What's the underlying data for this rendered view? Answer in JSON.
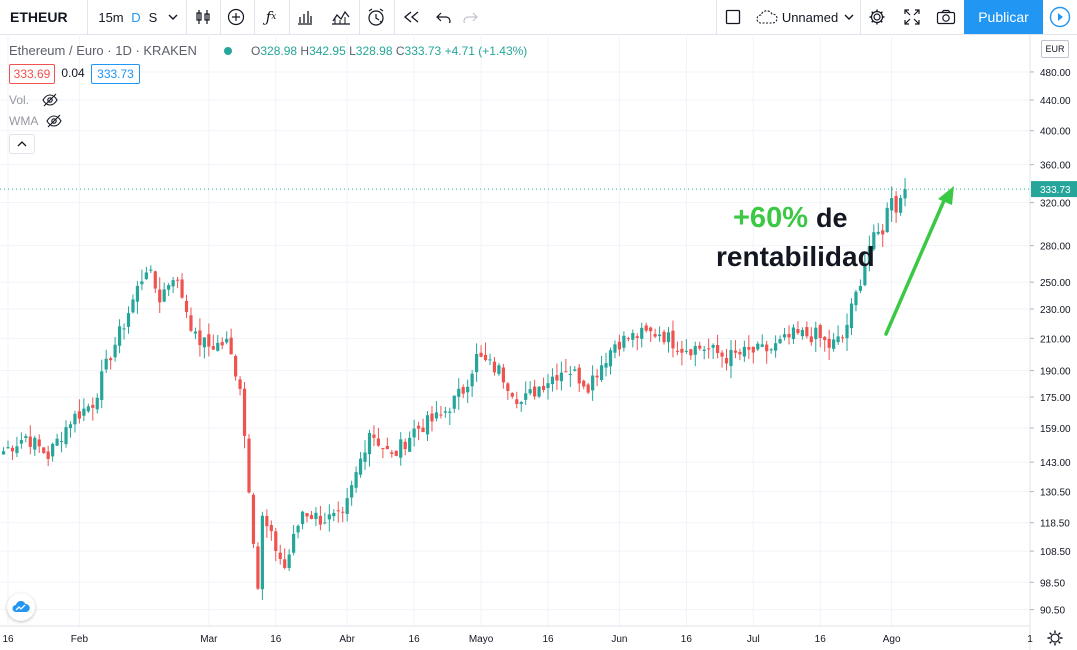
{
  "toolbar": {
    "symbol": "ETHEUR",
    "interval": "15m",
    "interval_d": "D",
    "interval_s": "S",
    "layout_name": "Unnamed",
    "publish_label": "Publicar"
  },
  "legend": {
    "title": "Ethereum / Euro · 1D · KRAKEN",
    "o_label": "O",
    "o_value": "328.98",
    "h_label": "H",
    "h_value": "342.95",
    "l_label": "L",
    "l_value": "328.98",
    "c_label": "C",
    "c_value": "333.73",
    "change": "+4.71 (+1.43%)",
    "bid": "333.69",
    "spread": "0.04",
    "ask": "333.73",
    "vol_label": "Vol.",
    "wma_label": "WMA"
  },
  "price_scale": {
    "currency": "EUR",
    "labels": [
      "480.00",
      "440.00",
      "400.00",
      "360.00",
      "320.00",
      "280.00",
      "250.00",
      "230.00",
      "210.00",
      "190.00",
      "175.00",
      "159.00",
      "143.00",
      "130.50",
      "118.50",
      "108.50",
      "98.50",
      "90.50"
    ],
    "last_price": "333.73"
  },
  "annotation": {
    "line1_green": "+60%",
    "line1_black": "de",
    "line2": "rentabilidad"
  },
  "colors": {
    "up": "#26a69a",
    "down": "#ef5350",
    "accent": "#2196f3",
    "arrow": "#3bc844"
  },
  "chart_data": {
    "type": "candlestick",
    "title": "Ethereum / Euro · 1D · KRAKEN",
    "x_ticks": [
      "16",
      "Feb",
      "Mar",
      "16",
      "Abr",
      "16",
      "Mayo",
      "16",
      "Jun",
      "16",
      "Jul",
      "16",
      "Ago",
      "1"
    ],
    "y_axis": {
      "scale": "log",
      "range": [
        86,
        540
      ],
      "unit": "EUR"
    },
    "series": [
      {
        "date": "2020-01-15",
        "c": 148
      },
      {
        "date": "2020-01-20",
        "c": 155
      },
      {
        "date": "2020-01-25",
        "c": 146
      },
      {
        "date": "2020-01-30",
        "c": 163
      },
      {
        "date": "2020-02-04",
        "c": 172
      },
      {
        "date": "2020-02-08",
        "c": 200
      },
      {
        "date": "2020-02-11",
        "c": 220
      },
      {
        "date": "2020-02-14",
        "c": 245
      },
      {
        "date": "2020-02-16",
        "c": 262
      },
      {
        "date": "2020-02-19",
        "c": 238
      },
      {
        "date": "2020-02-22",
        "c": 256
      },
      {
        "date": "2020-02-24",
        "c": 240
      },
      {
        "date": "2020-02-27",
        "c": 210
      },
      {
        "date": "2020-03-01",
        "c": 205
      },
      {
        "date": "2020-03-05",
        "c": 207
      },
      {
        "date": "2020-03-08",
        "c": 182
      },
      {
        "date": "2020-03-12",
        "c": 97
      },
      {
        "date": "2020-03-13",
        "c": 120
      },
      {
        "date": "2020-03-18",
        "c": 103
      },
      {
        "date": "2020-03-22",
        "c": 123
      },
      {
        "date": "2020-03-26",
        "c": 120
      },
      {
        "date": "2020-03-31",
        "c": 120
      },
      {
        "date": "2020-04-06",
        "c": 158
      },
      {
        "date": "2020-04-11",
        "c": 145
      },
      {
        "date": "2020-04-16",
        "c": 158
      },
      {
        "date": "2020-04-22",
        "c": 165
      },
      {
        "date": "2020-04-27",
        "c": 179
      },
      {
        "date": "2020-04-30",
        "c": 198
      },
      {
        "date": "2020-05-05",
        "c": 190
      },
      {
        "date": "2020-05-10",
        "c": 172
      },
      {
        "date": "2020-05-15",
        "c": 183
      },
      {
        "date": "2020-05-20",
        "c": 192
      },
      {
        "date": "2020-05-25",
        "c": 182
      },
      {
        "date": "2020-05-31",
        "c": 207
      },
      {
        "date": "2020-06-05",
        "c": 212
      },
      {
        "date": "2020-06-10",
        "c": 214
      },
      {
        "date": "2020-06-15",
        "c": 204
      },
      {
        "date": "2020-06-20",
        "c": 204
      },
      {
        "date": "2020-06-25",
        "c": 198
      },
      {
        "date": "2020-06-30",
        "c": 201
      },
      {
        "date": "2020-07-05",
        "c": 203
      },
      {
        "date": "2020-07-10",
        "c": 212
      },
      {
        "date": "2020-07-15",
        "c": 212
      },
      {
        "date": "2020-07-18",
        "c": 205
      },
      {
        "date": "2020-07-21",
        "c": 210
      },
      {
        "date": "2020-07-24",
        "c": 240
      },
      {
        "date": "2020-07-27",
        "c": 280
      },
      {
        "date": "2020-07-30",
        "c": 295
      },
      {
        "date": "2020-08-01",
        "c": 330
      },
      {
        "date": "2020-08-02",
        "c": 315
      },
      {
        "date": "2020-08-04",
        "c": 333.73
      }
    ]
  }
}
